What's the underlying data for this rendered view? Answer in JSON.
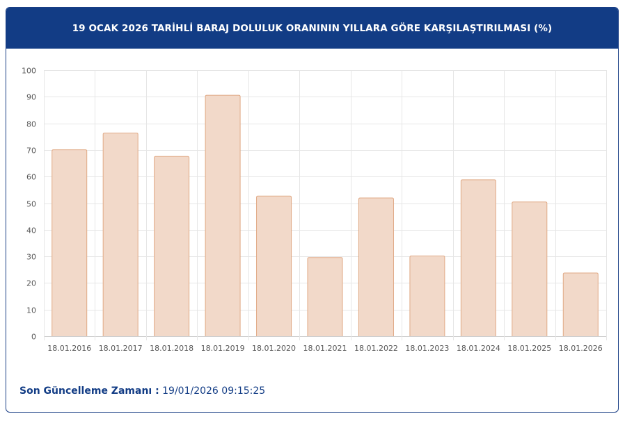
{
  "header": {
    "title": "19 OCAK 2026 TARİHLİ BARAJ DOLULUK ORANININ YILLARA GÖRE KARŞILAŞTIRILMASI (%)"
  },
  "footer": {
    "label": "Son Güncelleme Zamanı :",
    "value": "19/01/2026 09:15:25"
  },
  "colors": {
    "header_bg": "#123c85",
    "bar_fill": "#f2d9c9",
    "bar_stroke": "#e0a985",
    "grid": "#e6e6e6"
  },
  "chart_data": {
    "type": "bar",
    "title": "19 OCAK 2026 TARİHLİ BARAJ DOLULUK ORANININ YILLARA GÖRE KARŞILAŞTIRILMASI (%)",
    "xlabel": "",
    "ylabel": "",
    "categories": [
      "18.01.2016",
      "18.01.2017",
      "18.01.2018",
      "18.01.2019",
      "18.01.2020",
      "18.01.2021",
      "18.01.2022",
      "18.01.2023",
      "18.01.2024",
      "18.01.2025",
      "18.01.2026"
    ],
    "values": [
      70.2,
      76.5,
      67.7,
      90.7,
      52.8,
      29.7,
      52.1,
      30.3,
      58.9,
      50.6,
      23.9
    ],
    "ylim": [
      0,
      100
    ],
    "yticks": [
      0,
      10,
      20,
      30,
      40,
      50,
      60,
      70,
      80,
      90,
      100
    ],
    "grid": true,
    "legend": "none"
  }
}
